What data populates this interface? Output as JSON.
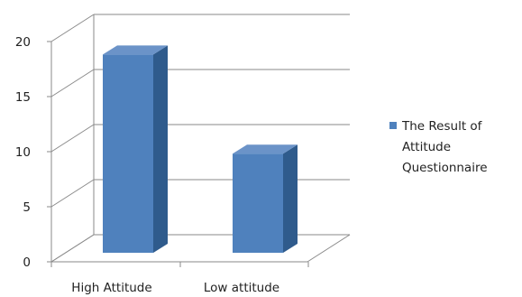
{
  "chart_data": {
    "type": "bar",
    "categories": [
      "High Attitude",
      "Low attitude"
    ],
    "series": [
      {
        "name": "The Result of Attitude Questionnaire",
        "values": [
          18,
          9
        ]
      }
    ],
    "ylim": [
      0,
      20
    ],
    "yticks": [
      "0",
      "5",
      "10",
      "15",
      "20"
    ],
    "grid": true,
    "legend_position": "right",
    "colors": {
      "bar_front": "#4f81bd",
      "bar_side": "#2f5b8c",
      "bar_top": "#6b93c8",
      "grid": "#8a8a8a"
    }
  }
}
